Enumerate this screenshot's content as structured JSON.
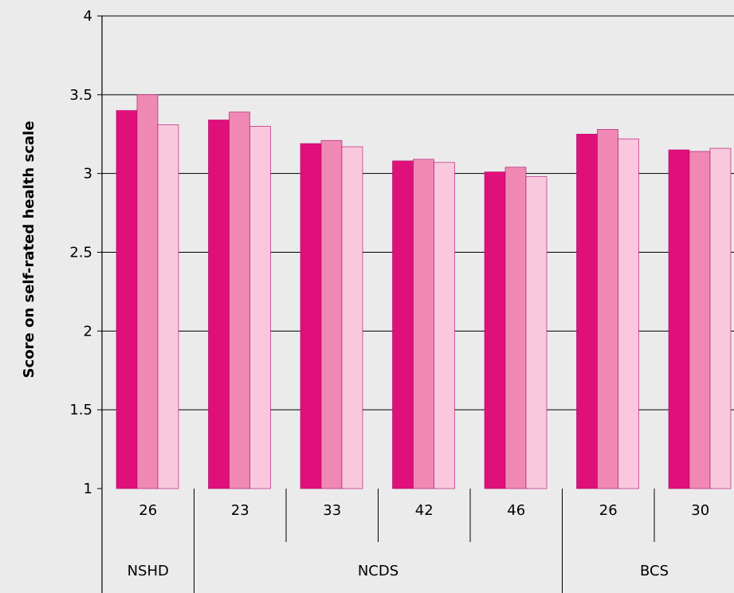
{
  "chart_data": {
    "type": "bar",
    "ylabel": "Score on self-rated health scale",
    "ylim": [
      1,
      4
    ],
    "yticks": [
      "1",
      "1.5",
      "2",
      "2.5",
      "3",
      "3.5",
      "4"
    ],
    "grid": true,
    "categories": [
      "26",
      "23",
      "33",
      "42",
      "46",
      "26",
      "30"
    ],
    "groups": [
      {
        "label": "NSHD",
        "span": 1
      },
      {
        "label": "NCDS",
        "span": 4
      },
      {
        "label": "BCS",
        "span": 2
      }
    ],
    "series": [
      {
        "color": "#e0107a",
        "values": [
          3.4,
          3.34,
          3.19,
          3.08,
          3.01,
          3.25,
          3.15
        ]
      },
      {
        "color": "#f088b4",
        "values": [
          3.5,
          3.39,
          3.21,
          3.09,
          3.04,
          3.28,
          3.14
        ]
      },
      {
        "color": "#f9c8dc",
        "values": [
          3.31,
          3.3,
          3.17,
          3.07,
          2.98,
          3.22,
          3.16
        ]
      }
    ]
  }
}
